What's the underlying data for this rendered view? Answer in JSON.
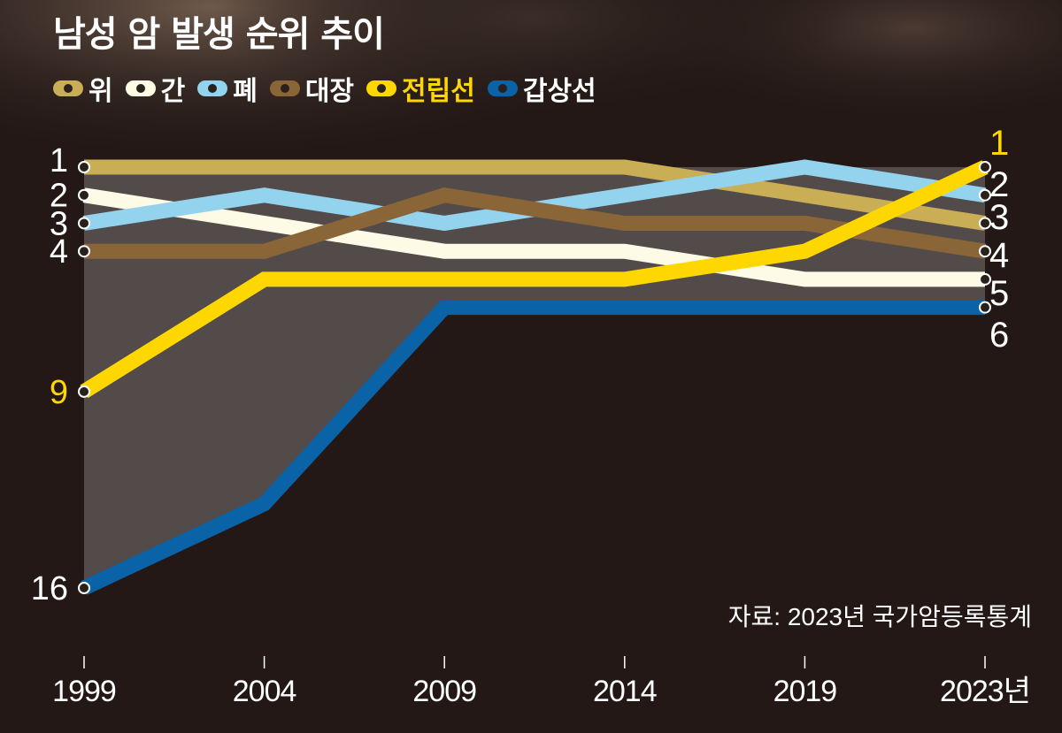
{
  "title": "남성 암 발생 순위 추이",
  "source": "자료: 2023년 국가암등록통계",
  "chart_data": {
    "type": "line",
    "title": "남성 암 발생 순위 추이",
    "x": [
      "1999",
      "2004",
      "2009",
      "2014",
      "2019",
      "2023년"
    ],
    "y_scale": "rank (1 at top, 16 at bottom, linear)",
    "ylim": [
      1,
      16
    ],
    "grid": false,
    "legend_position": "top-left",
    "series": [
      {
        "name": "위",
        "color": "#c9ae55",
        "values": [
          1,
          1,
          1,
          1,
          2,
          3
        ]
      },
      {
        "name": "간",
        "color": "#fdfbe6",
        "values": [
          2,
          3,
          4,
          4,
          5,
          5
        ]
      },
      {
        "name": "폐",
        "color": "#93d3ee",
        "values": [
          3,
          2,
          3,
          2,
          1,
          2
        ]
      },
      {
        "name": "대장",
        "color": "#8a6538",
        "values": [
          4,
          4,
          2,
          3,
          3,
          4
        ]
      },
      {
        "name": "전립선",
        "color": "#ffd700",
        "values": [
          9,
          5,
          5,
          5,
          4,
          1
        ]
      },
      {
        "name": "갑상선",
        "color": "#0a62a7",
        "values": [
          16,
          13,
          6,
          6,
          6,
          6
        ]
      }
    ],
    "left_labels": [
      {
        "text": "1",
        "color": "#ffffff",
        "rank": 1
      },
      {
        "text": "2",
        "color": "#ffffff",
        "rank": 2
      },
      {
        "text": "3",
        "color": "#ffffff",
        "rank": 3
      },
      {
        "text": "4",
        "color": "#ffffff",
        "rank": 4
      },
      {
        "text": "9",
        "color": "#ffd700",
        "rank": 9
      },
      {
        "text": "16",
        "color": "#ffffff",
        "rank": 16
      }
    ],
    "right_labels": [
      {
        "text": "1",
        "color": "#ffd700",
        "rank": 1
      },
      {
        "text": "2",
        "color": "#ffffff",
        "rank": 2
      },
      {
        "text": "3",
        "color": "#ffffff",
        "rank": 3
      },
      {
        "text": "4",
        "color": "#ffffff",
        "rank": 4
      },
      {
        "text": "5",
        "color": "#ffffff",
        "rank": 5
      },
      {
        "text": "6",
        "color": "#ffffff",
        "rank": 6
      }
    ]
  }
}
